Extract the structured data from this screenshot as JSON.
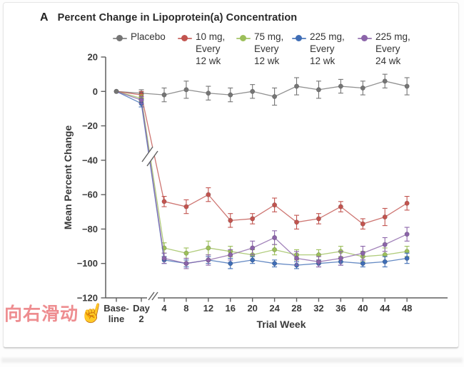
{
  "panel_label": "A",
  "title": "Percent Change in Lipoprotein(a) Concentration",
  "swipe_hint": {
    "text": "向右滑动",
    "icon_glyph": "☝",
    "color": "#ee8d90"
  },
  "chart_data": {
    "type": "line",
    "title": "Percent Change in Lipoprotein(a) Concentration",
    "xlabel": "Trial Week",
    "ylabel": "Mean Percent Change",
    "ylim": [
      -120,
      20
    ],
    "yticks": [
      20,
      0,
      -20,
      -40,
      -60,
      -80,
      -100,
      -120
    ],
    "x_categories": [
      "Base-\nline",
      "Day\n2",
      "4",
      "8",
      "12",
      "16",
      "20",
      "24",
      "28",
      "32",
      "36",
      "40",
      "44",
      "48"
    ],
    "x_axis_break_between": [
      "Day 2",
      "4"
    ],
    "grid": false,
    "error_bars": true,
    "legend_position": "top",
    "series": [
      {
        "name": "Placebo",
        "legend_label": "Placebo",
        "color": "#757575",
        "values": [
          0,
          -1,
          -2,
          1,
          -1,
          -2,
          0,
          -3,
          3,
          1,
          3,
          2,
          6,
          3
        ],
        "errors": [
          0,
          2,
          4,
          5,
          4,
          4,
          4,
          5,
          5,
          5,
          4,
          4,
          4,
          5
        ]
      },
      {
        "name": "10 mg, Every 12 wk",
        "legend_label": "10 mg,\nEvery\n12 wk",
        "color": "#c2544f",
        "values": [
          0,
          -2,
          -64,
          -67,
          -60,
          -75,
          -74,
          -66,
          -76,
          -74,
          -67,
          -77,
          -73,
          -65
        ],
        "errors": [
          0,
          2,
          3,
          4,
          4,
          4,
          3,
          4,
          4,
          3,
          3,
          3,
          5,
          4
        ]
      },
      {
        "name": "75 mg, Every 12 wk",
        "legend_label": "75 mg,\nEvery\n12 wk",
        "color": "#9cbf5a",
        "values": [
          0,
          -4,
          -91,
          -94,
          -91,
          -93,
          -95,
          -92,
          -95,
          -95,
          -93,
          -96,
          -95,
          -93
        ],
        "errors": [
          0,
          2,
          3,
          3,
          4,
          3,
          3,
          3,
          3,
          3,
          3,
          3,
          4,
          3
        ]
      },
      {
        "name": "225 mg, Every 12 wk",
        "legend_label": "225 mg,\nEvery\n12 wk",
        "color": "#3f6db5",
        "values": [
          0,
          -7,
          -98,
          -100,
          -98,
          -100,
          -98,
          -100,
          -101,
          -100,
          -99,
          -100,
          -99,
          -97
        ],
        "errors": [
          0,
          2,
          2,
          2,
          2,
          3,
          2,
          2,
          2,
          2,
          2,
          2,
          3,
          3
        ]
      },
      {
        "name": "225 mg, Every 24 wk",
        "legend_label": "225 mg,\nEvery\n24 wk",
        "color": "#8b64a9",
        "values": [
          0,
          -5,
          -97,
          -100,
          -98,
          -95,
          -91,
          -85,
          -97,
          -99,
          -97,
          -94,
          -89,
          -83
        ],
        "errors": [
          0,
          2,
          3,
          3,
          3,
          3,
          4,
          4,
          4,
          3,
          4,
          4,
          4,
          4
        ]
      }
    ]
  }
}
